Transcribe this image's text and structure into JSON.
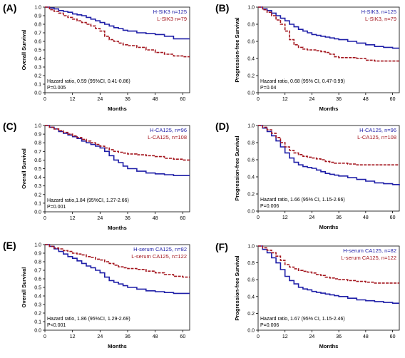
{
  "colors": {
    "H": "#1f1fa8",
    "L": "#a3151d",
    "axis": "#000000"
  },
  "chart_data": [
    {
      "panel": "(A)",
      "type": "line",
      "ylabel": "Overall Survival",
      "xlabel": "Months",
      "xticks": [
        "0",
        "12",
        "24",
        "36",
        "48",
        "60"
      ],
      "yticks": [
        "0.0",
        "0.1",
        "0.2",
        "0.3",
        "0.4",
        "0.5",
        "0.6",
        "0.7",
        "0.8",
        "0.9",
        "1.0"
      ],
      "xlim": [
        0,
        63
      ],
      "ylim": [
        0,
        1
      ],
      "legend": [
        "H-SIK3 n=125",
        "L-SIK3 n=79"
      ],
      "legend_position": "top-right",
      "hr_text": "Hazard ratio, 0.59 (95%CI, 0.41-0.86)",
      "p_text": "P=0.005",
      "series": [
        {
          "key": "H",
          "x": [
            0,
            2,
            4,
            6,
            8,
            10,
            12,
            14,
            16,
            18,
            20,
            22,
            24,
            26,
            28,
            30,
            32,
            34,
            36,
            40,
            44,
            48,
            52,
            56,
            60,
            63
          ],
          "y": [
            1,
            0.99,
            0.98,
            0.96,
            0.95,
            0.94,
            0.92,
            0.91,
            0.9,
            0.88,
            0.86,
            0.84,
            0.82,
            0.8,
            0.78,
            0.76,
            0.75,
            0.73,
            0.72,
            0.7,
            0.69,
            0.68,
            0.66,
            0.63,
            0.63,
            0.63
          ]
        },
        {
          "key": "L",
          "x": [
            0,
            2,
            4,
            6,
            8,
            10,
            12,
            14,
            16,
            18,
            20,
            22,
            24,
            26,
            28,
            30,
            32,
            34,
            36,
            40,
            44,
            48,
            52,
            56,
            60,
            63
          ],
          "y": [
            1,
            0.97,
            0.95,
            0.93,
            0.9,
            0.88,
            0.86,
            0.84,
            0.82,
            0.8,
            0.78,
            0.75,
            0.72,
            0.66,
            0.62,
            0.6,
            0.58,
            0.56,
            0.55,
            0.53,
            0.5,
            0.47,
            0.45,
            0.43,
            0.42,
            0.42
          ]
        }
      ]
    },
    {
      "panel": "(B)",
      "type": "line",
      "ylabel": "Progression-free Survival",
      "xlabel": "Months",
      "xticks": [
        "0",
        "12",
        "24",
        "36",
        "48",
        "60"
      ],
      "yticks": [
        "0.0",
        "0.2",
        "0.4",
        "0.6",
        "0.8",
        "1.0"
      ],
      "xlim": [
        0,
        63
      ],
      "ylim": [
        0,
        1
      ],
      "legend": [
        "H-SIK3, n=125",
        "L-SIK3, n=79"
      ],
      "legend_position": "top-right",
      "hr_text": "Hazard ratio, 0.68 (95% CI, 0.47-0.99)",
      "p_text": "P=0.04",
      "series": [
        {
          "key": "H",
          "x": [
            0,
            2,
            4,
            6,
            8,
            10,
            12,
            14,
            16,
            18,
            20,
            22,
            24,
            26,
            28,
            30,
            32,
            34,
            36,
            40,
            44,
            48,
            52,
            56,
            60,
            63
          ],
          "y": [
            1,
            0.98,
            0.96,
            0.93,
            0.9,
            0.87,
            0.84,
            0.8,
            0.77,
            0.74,
            0.72,
            0.7,
            0.68,
            0.67,
            0.66,
            0.65,
            0.64,
            0.63,
            0.62,
            0.6,
            0.58,
            0.56,
            0.54,
            0.53,
            0.52,
            0.52
          ]
        },
        {
          "key": "L",
          "x": [
            0,
            2,
            4,
            6,
            8,
            10,
            12,
            14,
            16,
            18,
            20,
            22,
            24,
            26,
            28,
            30,
            32,
            34,
            36,
            40,
            44,
            48,
            52,
            56,
            60,
            63
          ],
          "y": [
            1,
            0.97,
            0.94,
            0.9,
            0.85,
            0.8,
            0.72,
            0.62,
            0.56,
            0.53,
            0.51,
            0.5,
            0.5,
            0.49,
            0.48,
            0.47,
            0.45,
            0.42,
            0.41,
            0.41,
            0.4,
            0.38,
            0.37,
            0.37,
            0.37,
            0.37
          ]
        }
      ]
    },
    {
      "panel": "(C)",
      "type": "line",
      "ylabel": "Overall Survival",
      "xlabel": "Months",
      "xticks": [
        "0",
        "12",
        "24",
        "36",
        "48",
        "60"
      ],
      "yticks": [
        "0.0",
        "0.1",
        "0.2",
        "0.3",
        "0.4",
        "0.5",
        "0.6",
        "0.7",
        "0.8",
        "0.9",
        "1.0"
      ],
      "xlim": [
        0,
        63
      ],
      "ylim": [
        0,
        1
      ],
      "legend": [
        "H-CA125, n=96",
        "L-CA125, n=108"
      ],
      "legend_position": "top-right",
      "hr_text": "Hazard ratio,1.84 (95%CI, 1.27-2.66)",
      "p_text": "P=0.001",
      "series": [
        {
          "key": "H",
          "x": [
            0,
            2,
            4,
            6,
            8,
            10,
            12,
            14,
            16,
            18,
            20,
            22,
            24,
            26,
            28,
            30,
            32,
            34,
            36,
            40,
            44,
            48,
            52,
            56,
            60,
            63
          ],
          "y": [
            1,
            0.98,
            0.96,
            0.93,
            0.91,
            0.89,
            0.87,
            0.85,
            0.82,
            0.8,
            0.78,
            0.76,
            0.74,
            0.7,
            0.65,
            0.6,
            0.57,
            0.53,
            0.5,
            0.47,
            0.45,
            0.44,
            0.43,
            0.42,
            0.42,
            0.42
          ]
        },
        {
          "key": "L",
          "x": [
            0,
            2,
            4,
            6,
            8,
            10,
            12,
            14,
            16,
            18,
            20,
            22,
            24,
            26,
            28,
            30,
            32,
            34,
            36,
            40,
            44,
            48,
            52,
            56,
            60,
            63
          ],
          "y": [
            1,
            0.98,
            0.96,
            0.94,
            0.92,
            0.9,
            0.88,
            0.86,
            0.84,
            0.82,
            0.8,
            0.78,
            0.76,
            0.74,
            0.72,
            0.7,
            0.69,
            0.68,
            0.67,
            0.66,
            0.65,
            0.64,
            0.62,
            0.61,
            0.6,
            0.59
          ]
        }
      ]
    },
    {
      "panel": "(D)",
      "type": "line",
      "ylabel": "Progression-free Survival",
      "xlabel": "Months",
      "xticks": [
        "0",
        "12",
        "24",
        "36",
        "48",
        "60"
      ],
      "yticks": [
        "0.0",
        "0.2",
        "0.4",
        "0.6",
        "0.8",
        "1.0"
      ],
      "xlim": [
        0,
        63
      ],
      "ylim": [
        0,
        1
      ],
      "legend": [
        "H-CA125, n=96",
        "L-CA125, n=108"
      ],
      "legend_position": "top-right",
      "hr_text": "Hazard ratio, 1.66 (95% CI, 1.15-2.66)",
      "p_text": "P=0.006",
      "series": [
        {
          "key": "H",
          "x": [
            0,
            2,
            4,
            6,
            8,
            10,
            12,
            14,
            16,
            18,
            20,
            22,
            24,
            26,
            28,
            30,
            32,
            34,
            36,
            40,
            44,
            48,
            52,
            56,
            60,
            63
          ],
          "y": [
            1,
            0.97,
            0.93,
            0.88,
            0.82,
            0.75,
            0.68,
            0.62,
            0.57,
            0.54,
            0.52,
            0.51,
            0.5,
            0.48,
            0.46,
            0.44,
            0.43,
            0.42,
            0.41,
            0.39,
            0.37,
            0.35,
            0.33,
            0.32,
            0.31,
            0.3
          ]
        },
        {
          "key": "L",
          "x": [
            0,
            2,
            4,
            6,
            8,
            10,
            12,
            14,
            16,
            18,
            20,
            22,
            24,
            26,
            28,
            30,
            32,
            34,
            36,
            40,
            44,
            48,
            52,
            56,
            60,
            63
          ],
          "y": [
            1,
            0.98,
            0.95,
            0.91,
            0.86,
            0.8,
            0.75,
            0.71,
            0.68,
            0.66,
            0.64,
            0.63,
            0.62,
            0.61,
            0.6,
            0.58,
            0.57,
            0.56,
            0.56,
            0.55,
            0.54,
            0.54,
            0.54,
            0.54,
            0.54,
            0.54
          ]
        }
      ]
    },
    {
      "panel": "(E)",
      "type": "line",
      "ylabel": "Overall Survival",
      "xlabel": "Months",
      "xticks": [
        "0",
        "12",
        "24",
        "36",
        "48",
        "60"
      ],
      "yticks": [
        "0.0",
        "0.1",
        "0.2",
        "0.3",
        "0.4",
        "0.5",
        "0.6",
        "0.7",
        "0.8",
        "0.9",
        "1.0"
      ],
      "xlim": [
        0,
        63
      ],
      "ylim": [
        0,
        1
      ],
      "legend": [
        "H-serum CA125, n=82",
        "L-serum CA125, n=122"
      ],
      "legend_position": "top-right",
      "hr_text": "Hazard ratio, 1.86 (95%CI, 1.29-2.69)",
      "p_text": "P<0.001",
      "series": [
        {
          "key": "H",
          "x": [
            0,
            2,
            4,
            6,
            8,
            10,
            12,
            14,
            16,
            18,
            20,
            22,
            24,
            26,
            28,
            30,
            32,
            34,
            36,
            40,
            44,
            48,
            52,
            56,
            60,
            63
          ],
          "y": [
            1,
            0.98,
            0.95,
            0.92,
            0.89,
            0.86,
            0.84,
            0.81,
            0.78,
            0.75,
            0.73,
            0.7,
            0.67,
            0.62,
            0.58,
            0.56,
            0.54,
            0.52,
            0.5,
            0.48,
            0.46,
            0.45,
            0.44,
            0.43,
            0.43,
            0.43
          ]
        },
        {
          "key": "L",
          "x": [
            0,
            2,
            4,
            6,
            8,
            10,
            12,
            14,
            16,
            18,
            20,
            22,
            24,
            26,
            28,
            30,
            32,
            34,
            36,
            40,
            44,
            48,
            52,
            56,
            60,
            63
          ],
          "y": [
            1,
            0.98,
            0.96,
            0.95,
            0.93,
            0.92,
            0.9,
            0.89,
            0.88,
            0.86,
            0.85,
            0.83,
            0.82,
            0.8,
            0.78,
            0.76,
            0.74,
            0.73,
            0.72,
            0.71,
            0.69,
            0.67,
            0.65,
            0.63,
            0.62,
            0.62
          ]
        }
      ]
    },
    {
      "panel": "(F)",
      "type": "line",
      "ylabel": "Progression-free Survival",
      "xlabel": "Months",
      "xticks": [
        "0",
        "12",
        "24",
        "36",
        "48",
        "60"
      ],
      "yticks": [
        "0.0",
        "0.2",
        "0.4",
        "0.6",
        "0.8",
        "1.0"
      ],
      "xlim": [
        0,
        63
      ],
      "ylim": [
        0,
        1
      ],
      "legend": [
        "H-serum CA125, n=82",
        "L-serum CA125, n=122"
      ],
      "legend_position": "top-right",
      "hr_text": "Hazard ratio, 1.67 (95% CI, 1.15-2.46)",
      "p_text": "P=0.006",
      "series": [
        {
          "key": "H",
          "x": [
            0,
            2,
            4,
            6,
            8,
            10,
            12,
            14,
            16,
            18,
            20,
            22,
            24,
            26,
            28,
            30,
            32,
            34,
            36,
            40,
            44,
            48,
            52,
            56,
            60,
            63
          ],
          "y": [
            1,
            0.96,
            0.92,
            0.86,
            0.8,
            0.72,
            0.64,
            0.59,
            0.55,
            0.51,
            0.49,
            0.48,
            0.46,
            0.45,
            0.44,
            0.43,
            0.42,
            0.41,
            0.4,
            0.38,
            0.36,
            0.35,
            0.34,
            0.33,
            0.32,
            0.32
          ]
        },
        {
          "key": "L",
          "x": [
            0,
            2,
            4,
            6,
            8,
            10,
            12,
            14,
            16,
            18,
            20,
            22,
            24,
            26,
            28,
            30,
            32,
            34,
            36,
            40,
            44,
            48,
            52,
            56,
            60,
            63
          ],
          "y": [
            1,
            0.98,
            0.95,
            0.92,
            0.88,
            0.83,
            0.78,
            0.75,
            0.73,
            0.71,
            0.7,
            0.69,
            0.68,
            0.66,
            0.65,
            0.63,
            0.62,
            0.61,
            0.6,
            0.59,
            0.58,
            0.57,
            0.56,
            0.56,
            0.56,
            0.56
          ]
        }
      ]
    }
  ]
}
